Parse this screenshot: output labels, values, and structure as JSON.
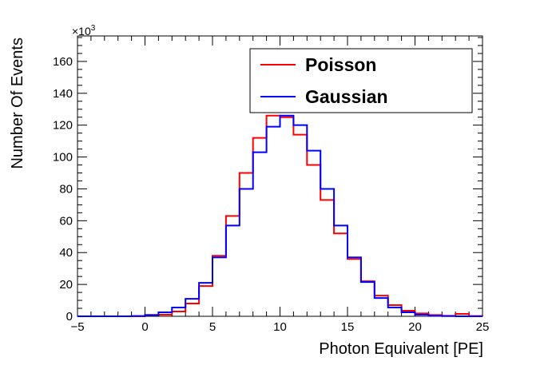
{
  "chart_data": {
    "type": "histogram-step",
    "title": "",
    "xlabel": "Photon Equivalent [PE]",
    "ylabel": "Number Of Events",
    "y_exponent_label": "×10",
    "y_exponent_power": "3",
    "xlim": [
      -5,
      25
    ],
    "ylim": [
      0,
      176
    ],
    "y_scale_note": "values in thousands",
    "x_ticks": [
      -5,
      0,
      5,
      10,
      15,
      20,
      25
    ],
    "x_tick_labels": [
      "−5",
      "0",
      "5",
      "10",
      "15",
      "20",
      "25"
    ],
    "y_ticks": [
      0,
      20,
      40,
      60,
      80,
      100,
      120,
      140,
      160
    ],
    "y_tick_labels": [
      "0",
      "20",
      "40",
      "60",
      "80",
      "100",
      "120",
      "140",
      "160"
    ],
    "x_minor_step": 1,
    "y_minor_step": 5,
    "bin_edges": [
      -5,
      -4,
      -3,
      -2,
      -1,
      0,
      1,
      2,
      3,
      4,
      5,
      6,
      7,
      8,
      9,
      10,
      11,
      12,
      13,
      14,
      15,
      16,
      17,
      18,
      19,
      20,
      21,
      22,
      23,
      24,
      25
    ],
    "legend": {
      "position": "top-right"
    },
    "series": [
      {
        "name": "Poisson",
        "color": "#ff0000",
        "values": [
          0,
          0,
          0,
          0,
          0,
          0.8,
          1,
          3,
          8,
          19,
          38,
          63,
          90,
          112,
          126,
          125,
          114,
          95,
          73,
          52,
          36,
          22,
          13,
          7,
          3.5,
          1.8,
          0.8,
          0.3,
          1.5,
          0.2
        ]
      },
      {
        "name": "Gaussian",
        "color": "#0000ff",
        "values": [
          0,
          0,
          0,
          0,
          0.2,
          0.8,
          2.5,
          5.5,
          11,
          21,
          37,
          57,
          80,
          103,
          119,
          126,
          120,
          104,
          80,
          57,
          37,
          21.5,
          11.5,
          5.5,
          2.5,
          1,
          0.3,
          0.1,
          0,
          0
        ]
      }
    ]
  }
}
